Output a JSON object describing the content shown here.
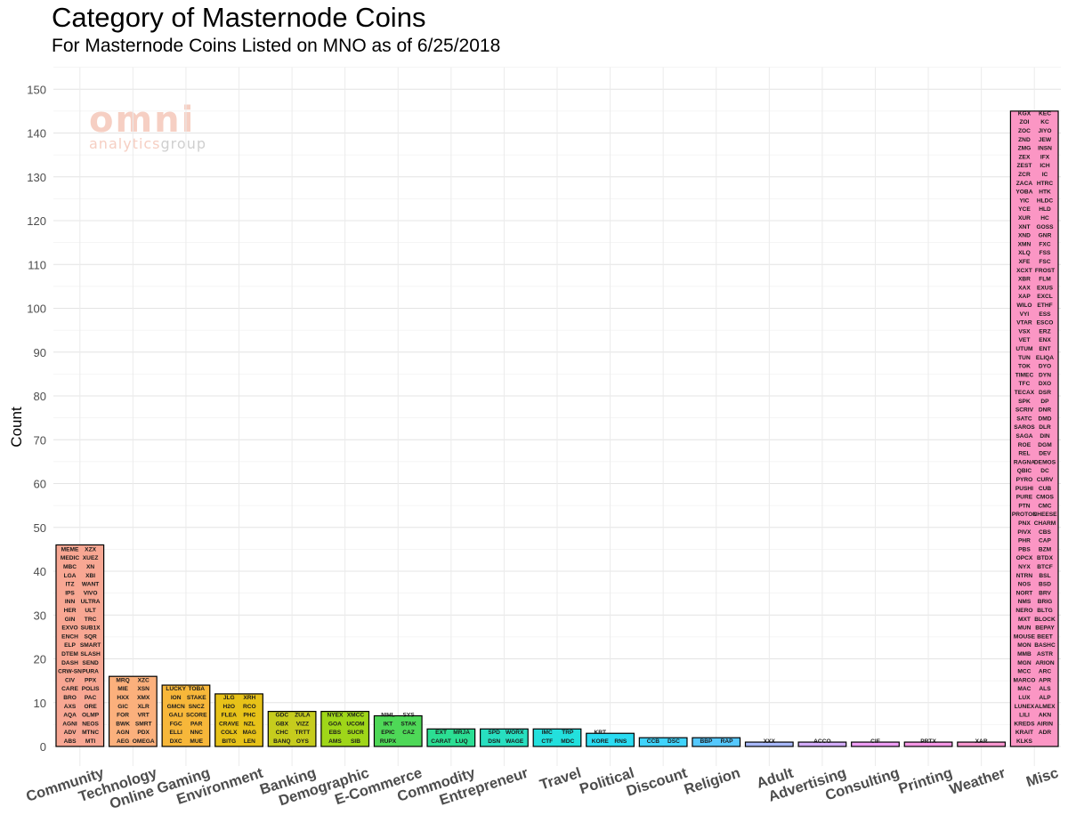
{
  "chart_data": {
    "type": "bar",
    "title": "Category of Masternode Coins",
    "subtitle": "For Masternode Coins Listed on MNO as of 6/25/2018",
    "xlabel": "",
    "ylabel": "Count",
    "ylim": [
      0,
      155
    ],
    "yticks": [
      0,
      10,
      20,
      30,
      40,
      50,
      60,
      70,
      80,
      90,
      100,
      110,
      120,
      130,
      140,
      150
    ],
    "grid": true,
    "watermark": {
      "top": "omni",
      "bottom_accent": "analytics",
      "bottom": "group"
    },
    "categories": [
      {
        "name": "Community",
        "value": 46,
        "color": "#F8A793",
        "coins": [
          "MEME",
          "XZX",
          "MEDIC",
          "XUEZ",
          "MBC",
          "XN",
          "LGA",
          "XBI",
          "ITZ",
          "WANT",
          "IPS",
          "VIVO",
          "INN",
          "ULTRA",
          "HER",
          "ULT",
          "GIN",
          "TRC",
          "EXVO",
          "SUB1X",
          "ENCH",
          "SQR",
          "ELP",
          "SMART",
          "DTEM",
          "SLASH",
          "DASH",
          "SEND",
          "CRW-SN",
          "PURA",
          "CIV",
          "PPX",
          "CARE",
          "POLIS",
          "BRO",
          "PAC",
          "AXS",
          "ORE",
          "AQA",
          "OLMP",
          "AGNI",
          "NEOS",
          "ADV",
          "MTNC",
          "ABS",
          "MTI"
        ]
      },
      {
        "name": "Technology",
        "value": 16,
        "color": "#FBB07C",
        "coins": [
          "MRQ",
          "XZC",
          "MIE",
          "XSN",
          "HXX",
          "XMX",
          "GIC",
          "XLR",
          "FOR",
          "VRT",
          "BWK",
          "SMRT",
          "AGN",
          "PDX",
          "AEG",
          "OMEGA"
        ]
      },
      {
        "name": "Online Gaming",
        "value": 14,
        "color": "#F7B73A",
        "coins": [
          "LUCKY",
          "TOBA",
          "ION",
          "STAKE",
          "GMCN",
          "SNCZ",
          "GALI",
          "SCORE",
          "FGC",
          "PAR",
          "ELLI",
          "NNC",
          "DXC",
          "MUE"
        ]
      },
      {
        "name": "Environment",
        "value": 12,
        "color": "#E7C219",
        "coins": [
          "JLG",
          "XRH",
          "H2O",
          "RCO",
          "FLEA",
          "PHC",
          "CRAVE",
          "NZL",
          "COLX",
          "MAG",
          "BITG",
          "LEN"
        ]
      },
      {
        "name": "Banking",
        "value": 8,
        "color": "#C6CC1D",
        "coins": [
          "GDC",
          "ZULA",
          "GBX",
          "VIZZ",
          "CHC",
          "TRTT",
          "BANQ",
          "OYS"
        ]
      },
      {
        "name": "Demographic",
        "value": 8,
        "color": "#9FD619",
        "coins": [
          "NYEX",
          "XMCC",
          "GOA",
          "UCOM",
          "EBS",
          "SUCR",
          "AMS",
          "SIB"
        ]
      },
      {
        "name": "E-Commerce",
        "value": 7,
        "color": "#4ED857",
        "coins": [
          "NIHL",
          "SYS",
          "IKT",
          "STAK",
          "EPIC",
          "CAZ",
          "RUPX"
        ]
      },
      {
        "name": "Commodity",
        "value": 4,
        "color": "#2BDE93",
        "coins": [
          "EXT",
          "MRJA",
          "CARAT",
          "LUQ"
        ]
      },
      {
        "name": "Entrepreneur",
        "value": 4,
        "color": "#28DFC0",
        "coins": [
          "SPD",
          "WORX",
          "DSN",
          "WAGE"
        ]
      },
      {
        "name": "Travel",
        "value": 4,
        "color": "#23E0DD",
        "coins": [
          "IMC",
          "TRP",
          "CTF",
          "MDC"
        ]
      },
      {
        "name": "Political",
        "value": 3,
        "color": "#2BDCF2",
        "coins": [
          "KRT",
          "KORE",
          "RNS"
        ]
      },
      {
        "name": "Discount",
        "value": 2,
        "color": "#3FD3FB",
        "coins": [
          "CCB",
          "DSC"
        ]
      },
      {
        "name": "Religion",
        "value": 2,
        "color": "#55C8FD",
        "coins": [
          "BBP",
          "RAP"
        ]
      },
      {
        "name": "Adult",
        "value": 1,
        "color": "#A8B8FB",
        "coins": [
          "XXX"
        ]
      },
      {
        "name": "Advertising",
        "value": 1,
        "color": "#D3ACFA",
        "coins": [
          "ACCO"
        ]
      },
      {
        "name": "Consulting",
        "value": 1,
        "color": "#EE9DF4",
        "coins": [
          "CIF"
        ]
      },
      {
        "name": "Printing",
        "value": 1,
        "color": "#F596E5",
        "coins": [
          "PRTX"
        ]
      },
      {
        "name": "Weather",
        "value": 1,
        "color": "#F996CF",
        "coins": [
          "XAR"
        ]
      },
      {
        "name": "Misc",
        "value": 145,
        "color": "#FB96C4",
        "coins": [
          "KGX",
          "KEC",
          "ZOI",
          "KC",
          "ZOC",
          "JIYO",
          "ZND",
          "JEW",
          "ZMG",
          "INSN",
          "ZEX",
          "IFX",
          "ZEST",
          "ICH",
          "ZCR",
          "IC",
          "ZACA",
          "HTRC",
          "YOBA",
          "HTK",
          "YIC",
          "HLDC",
          "YCE",
          "HLD",
          "XUR",
          "HC",
          "XNT",
          "GOSS",
          "XND",
          "GNR",
          "XMN",
          "FXC",
          "XLQ",
          "FSS",
          "XFE",
          "FSC",
          "XCXT",
          "FROST",
          "XBR",
          "FLM",
          "XAX",
          "EXUS",
          "XAP",
          "EXCL",
          "WILO",
          "ETHF",
          "VYI",
          "ESS",
          "VTAR",
          "ESCO",
          "VSX",
          "ERZ",
          "VET",
          "ENX",
          "UTUM",
          "ENT",
          "TUN",
          "ELIQA",
          "TOK",
          "DYO",
          "TIMEC",
          "DYN",
          "TFC",
          "DXO",
          "TECAX",
          "DSR",
          "SPK",
          "DP",
          "SCRIV",
          "DNR",
          "SATC",
          "DMD",
          "SAROS",
          "DLR",
          "SAGA",
          "DIN",
          "ROE",
          "DGM",
          "REL",
          "DEV",
          "RAGNA",
          "DEMOS",
          "QBIC",
          "DC",
          "PYRO",
          "CURV",
          "PUSHI",
          "CUB",
          "PURE",
          "CMOS",
          "PTN",
          "CMC",
          "PROTON",
          "CHEESE",
          "PNX",
          "CHARM",
          "PIVX",
          "CBS",
          "PHR",
          "CAP",
          "PBS",
          "BZM",
          "OPCX",
          "BTDX",
          "NYX",
          "BTCF",
          "NTRN",
          "BSL",
          "NOS",
          "BSD",
          "NORT",
          "BRV",
          "NMS",
          "BRIG",
          "NERO",
          "BLTG",
          "MXT",
          "BLOCK",
          "MUN",
          "BEPAY",
          "MOUSE",
          "BEET",
          "MON",
          "BASHC",
          "MMB",
          "ASTR",
          "MGN",
          "ARION",
          "MCC",
          "ARC",
          "MARCO",
          "APR",
          "MAC",
          "ALS",
          "LUX",
          "ALP",
          "LUNEX",
          "ALMEX",
          "LILI",
          "AKN",
          "KREDS",
          "AIRIN",
          "KRAIT",
          "ADR",
          "KLKS"
        ]
      }
    ]
  }
}
